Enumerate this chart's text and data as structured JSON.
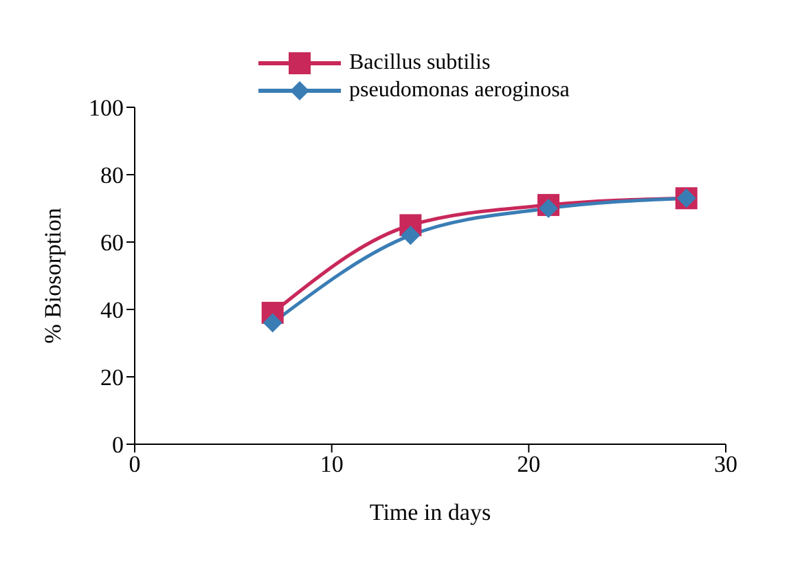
{
  "chart_data": {
    "type": "line",
    "xlabel": "Time in days",
    "ylabel": "% Biosorption",
    "x": [
      7,
      14,
      21,
      28
    ],
    "series": [
      {
        "name": "Bacillus subtilis",
        "color": "#c8285a",
        "marker": "square",
        "values": [
          39,
          65,
          71,
          73
        ]
      },
      {
        "name": "pseudomonas aeroginosa",
        "color": "#3a7db5",
        "marker": "diamond",
        "values": [
          36,
          62,
          70,
          73
        ]
      }
    ],
    "xlim": [
      0,
      30
    ],
    "xticks": [
      0,
      10,
      20,
      30
    ],
    "ylim": [
      0,
      100
    ],
    "yticks": [
      0,
      20,
      40,
      60,
      80,
      100
    ],
    "grid": false,
    "legend": "top"
  }
}
